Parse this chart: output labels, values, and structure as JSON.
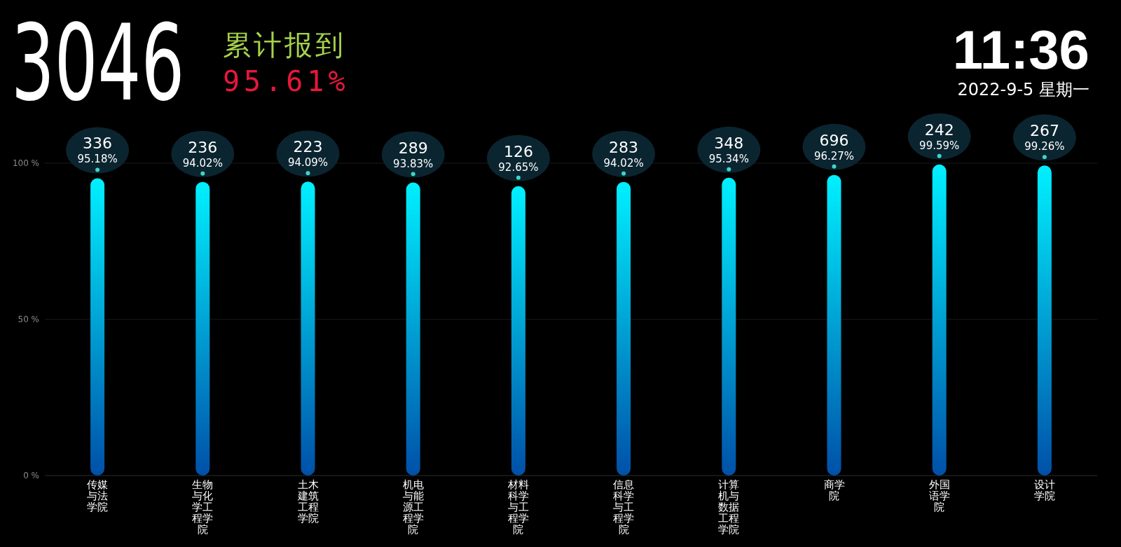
{
  "chart_data": {
    "type": "bar",
    "title": "3046",
    "subtitle": "累计报到",
    "annotations": [
      "95.61%",
      "11:36",
      "2022-9-5 星期一"
    ],
    "categories": [
      "传媒与法学院",
      "生物与化学工程学院",
      "土木建筑工程学院",
      "机电与能源工程学院",
      "材料科学与工程学院",
      "信息科学与工程学院",
      "计算机与数据工程学院",
      "商学院",
      "外国语学院",
      "设计学院"
    ],
    "series": [
      {
        "color": "#00f0ff",
        "values": [
          95.18,
          94.02,
          94.09,
          93.83,
          92.65,
          94.02,
          95.34,
          96.27,
          99.59,
          99.26
        ],
        "value_labels": [
          "336\n95.18%",
          "236\n94.02%",
          "223\n94.09%",
          "289\n93.83%",
          "126\n92.65%",
          "283\n94.02%",
          "348\n95.34%",
          "696\n96.27%",
          "242\n99.59%",
          "267\n99.26%"
        ]
      }
    ],
    "ylim": [
      0,
      100
    ],
    "yticks": [
      {
        "value": 0,
        "label": "0 %"
      },
      {
        "value": 50,
        "label": "50 %"
      },
      {
        "value": 100,
        "label": "100 %"
      }
    ],
    "grid": "y"
  }
}
